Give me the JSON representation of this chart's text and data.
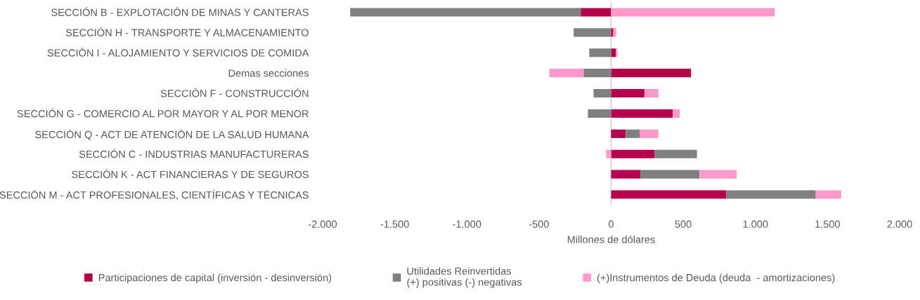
{
  "chart_data": {
    "type": "bar",
    "orientation": "horizontal",
    "stacked": true,
    "xlabel": "Millones de dólares",
    "categories": [
      "SECCIÓN B - EXPLOTACIÓN DE MINAS Y CANTERAS",
      "SECCIÓN H - TRANSPORTE Y ALMACENAMIENTO",
      "SECCIÓN I - ALOJAMIENTO Y SERVICIOS DE COMIDA",
      "Demas secciones",
      "SECCIÓN F - CONSTRUCCIÓN",
      "SECCIÓN G - COMERCIO AL POR MAYOR Y AL POR MENOR",
      "SECCIÓN Q - ACT DE ATENCIÓN DE LA SALUD HUMANA",
      "SECCIÓN C - INDUSTRIAS MANUFACTURERAS",
      "SECCIÓN K - ACT FINANCIERAS Y DE SEGUROS",
      "SECCIÓN M - ACT PROFESIONALES, CIENTÍFICAS Y TÉCNICAS"
    ],
    "series": [
      {
        "name": "Participaciones de capital (inversión - desinversión)",
        "color": "#b5004b",
        "values": [
          -211,
          15,
          34,
          554,
          231,
          427,
          101,
          300,
          202,
          798
        ]
      },
      {
        "name": "Utilidades Reinvertidas\n(+) positivas (-) negativas",
        "color": "#808080",
        "values": [
          -1598,
          -260,
          -152,
          -191,
          -122,
          -161,
          99,
          295,
          411,
          621
        ]
      },
      {
        "name": "(+)Instrumentos de Deuda (deuda  - amortizaciones)",
        "color": "#ff99cc",
        "values": [
          1134,
          20,
          10,
          -237,
          98,
          49,
          127,
          -34,
          258,
          176
        ]
      }
    ],
    "xlim": [
      -2000,
      2000
    ],
    "xticks": [
      {
        "value": -2000,
        "label": "-2.000"
      },
      {
        "value": -1500,
        "label": "-1.500"
      },
      {
        "value": -1000,
        "label": "-1.000"
      },
      {
        "value": -500,
        "label": "-500"
      },
      0,
      500,
      {
        "value": 1000,
        "label": "1.000"
      },
      {
        "value": 1500,
        "label": "1.500"
      },
      {
        "value": 2000,
        "label": "2.000"
      }
    ],
    "ref_lines": [
      {
        "axis": "x",
        "value": 0,
        "color": "#d9d9d9"
      }
    ],
    "grid": false,
    "legend": "bottom"
  }
}
